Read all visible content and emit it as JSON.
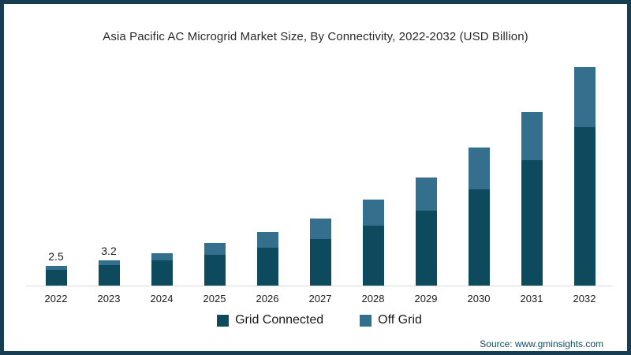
{
  "frame": {
    "border_color": "#173d52"
  },
  "chart_data": {
    "type": "bar",
    "subtype": "stacked-vertical",
    "title": "Asia Pacific AC Microgrid Market Size, By Connectivity, 2022-2032 (USD Billion)",
    "categories": [
      "2022",
      "2023",
      "2024",
      "2025",
      "2026",
      "2027",
      "2028",
      "2029",
      "2030",
      "2031",
      "2032"
    ],
    "series": [
      {
        "name": "Grid Connected",
        "color": "#0e4a5e",
        "values": [
          2.0,
          2.6,
          3.2,
          3.9,
          4.8,
          5.9,
          7.6,
          9.5,
          12.2,
          15.9,
          20.1
        ]
      },
      {
        "name": "Off Grid",
        "color": "#356f8e",
        "values": [
          0.5,
          0.6,
          0.9,
          1.5,
          2.0,
          2.6,
          3.3,
          4.2,
          5.3,
          6.1,
          7.6
        ]
      }
    ],
    "data_labels": [
      "2.5",
      "3.2",
      "",
      "",
      "",
      "",
      "",
      "",
      "",
      "",
      ""
    ],
    "xlabel": "",
    "ylabel": "",
    "ylim": [
      0,
      30
    ],
    "grid": false,
    "axis_shown": "x-baseline-only",
    "legend_position": "bottom"
  },
  "footer": {
    "source": "Source: www.gminsights.com"
  }
}
